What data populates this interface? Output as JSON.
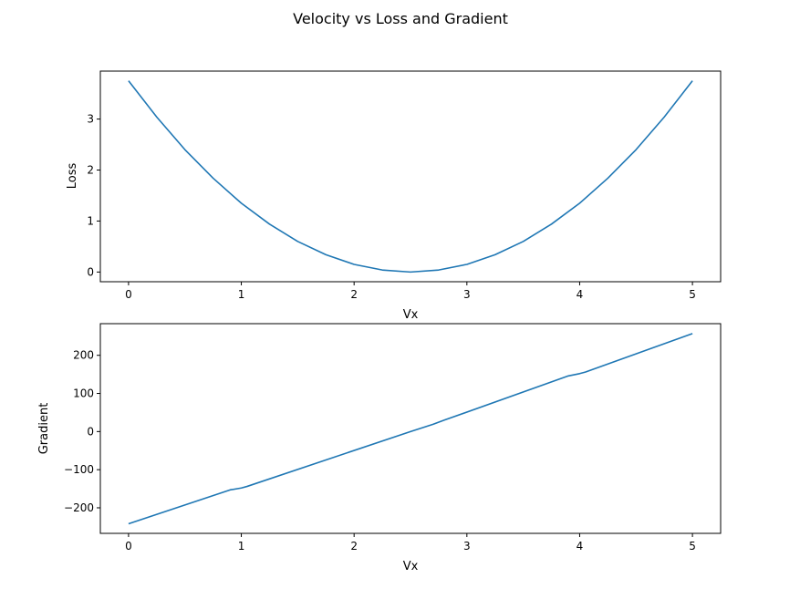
{
  "figure": {
    "title": "Velocity vs Loss and Gradient",
    "line_color": "#1f77b4"
  },
  "chart_data": [
    {
      "type": "line",
      "title": "",
      "xlabel": "Vx",
      "ylabel": "Loss",
      "xlim": [
        -0.25,
        5.25
      ],
      "ylim": [
        -0.19,
        3.94
      ],
      "xticks": [
        0,
        1,
        2,
        3,
        4,
        5
      ],
      "yticks": [
        0,
        1,
        2,
        3
      ],
      "grid": false,
      "series": [
        {
          "x": [
            0,
            0.25,
            0.5,
            0.75,
            1.0,
            1.25,
            1.5,
            1.75,
            2.0,
            2.25,
            2.5,
            2.75,
            3.0,
            3.25,
            3.5,
            3.75,
            4.0,
            4.25,
            4.5,
            4.75,
            5.0
          ],
          "y": [
            3.75,
            3.04,
            2.4,
            1.84,
            1.35,
            0.94,
            0.6,
            0.34,
            0.15,
            0.04,
            0.0,
            0.04,
            0.15,
            0.34,
            0.6,
            0.94,
            1.35,
            1.84,
            2.4,
            3.04,
            3.75
          ]
        }
      ]
    },
    {
      "type": "line",
      "title": "",
      "xlabel": "Vx",
      "ylabel": "Gradient",
      "xlim": [
        -0.25,
        5.25
      ],
      "ylim": [
        -267,
        283
      ],
      "xticks": [
        0,
        1,
        2,
        3,
        4,
        5
      ],
      "yticks": [
        -200,
        -100,
        0,
        100,
        200
      ],
      "grid": false,
      "series": [
        {
          "x": [
            0,
            0.9,
            1.0,
            1.05,
            2.5,
            2.7,
            2.8,
            3.9,
            4.0,
            4.05,
            5.0
          ],
          "y": [
            -242,
            -153,
            -148,
            -144,
            0,
            19,
            30,
            146,
            152,
            156,
            257
          ]
        }
      ]
    }
  ]
}
